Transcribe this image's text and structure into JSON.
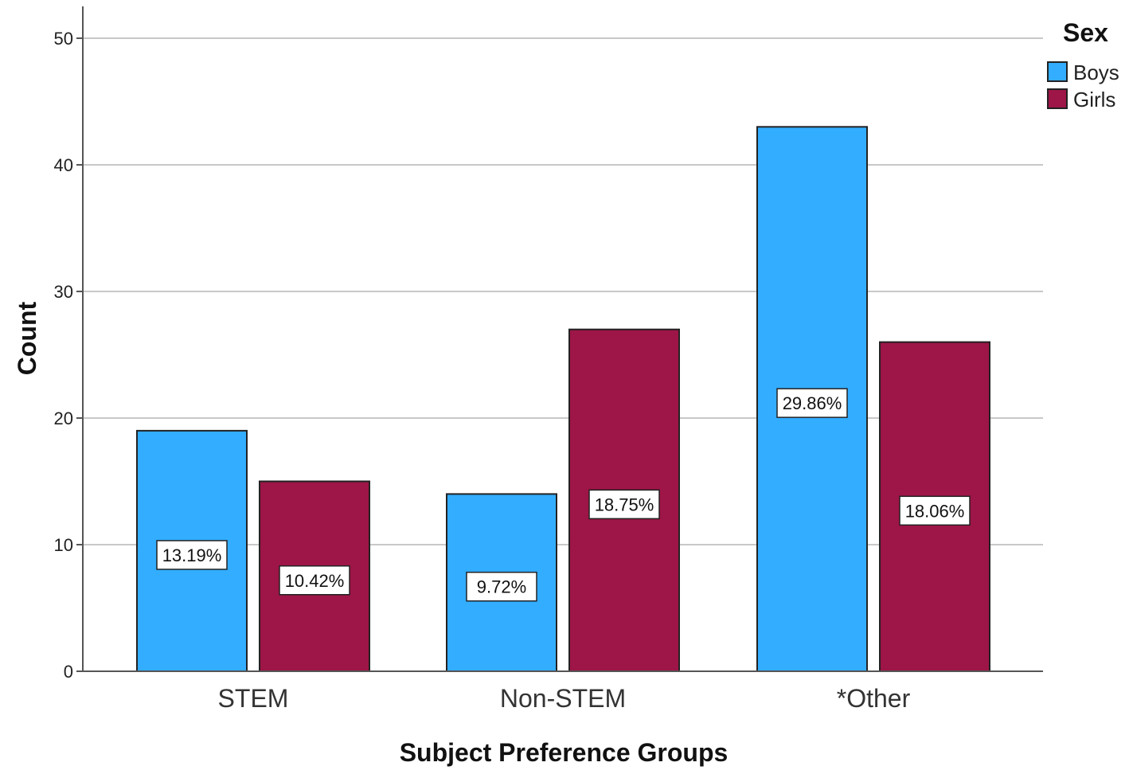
{
  "chart_data": {
    "type": "bar",
    "categories": [
      "STEM",
      "Non-STEM",
      "*Other"
    ],
    "series": [
      {
        "name": "Boys",
        "values": [
          19,
          14,
          43
        ],
        "labels": [
          "13.19%",
          "9.72%",
          "29.86%"
        ],
        "color": "#33adff"
      },
      {
        "name": "Girls",
        "values": [
          15,
          27,
          26
        ],
        "labels": [
          "10.42%",
          "18.75%",
          "18.06%"
        ],
        "color": "#9e1547"
      }
    ],
    "title": "",
    "xlabel": "Subject Preference Groups",
    "ylabel": "Count",
    "ylim": [
      0,
      52
    ],
    "yticks": [
      0,
      10,
      20,
      30,
      40,
      50
    ],
    "legend": {
      "title": "Sex",
      "placement": "top-right"
    },
    "grid": true
  }
}
